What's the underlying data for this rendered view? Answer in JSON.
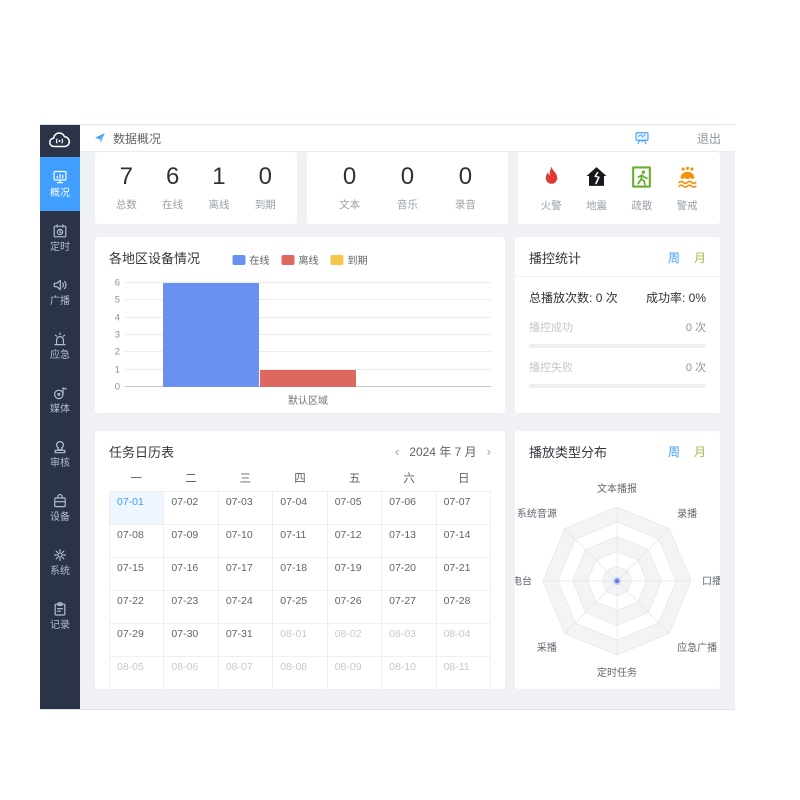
{
  "header": {
    "breadcrumb": "数据概况",
    "send_icon": "send-icon",
    "screen_icon": "screen-icon",
    "logout": "退出"
  },
  "sidebar": {
    "logo_icon": "broadcast-cloud-logo-icon",
    "items": [
      {
        "key": "overview",
        "label": "概况",
        "icon": "overview-icon",
        "active": true
      },
      {
        "key": "timer",
        "label": "定时",
        "icon": "timer-icon",
        "active": false
      },
      {
        "key": "broadcast",
        "label": "广播",
        "icon": "broadcast-icon",
        "active": false
      },
      {
        "key": "emergency",
        "label": "应急",
        "icon": "emergency-icon",
        "active": false
      },
      {
        "key": "media",
        "label": "媒体",
        "icon": "media-icon",
        "active": false
      },
      {
        "key": "audit",
        "label": "审核",
        "icon": "audit-icon",
        "active": false
      },
      {
        "key": "device",
        "label": "设备",
        "icon": "device-icon",
        "active": false
      },
      {
        "key": "system",
        "label": "系统",
        "icon": "system-icon",
        "active": false
      },
      {
        "key": "record",
        "label": "记录",
        "icon": "record-icon",
        "active": false
      }
    ]
  },
  "stats": {
    "devices": [
      {
        "value": "7",
        "label": "总数"
      },
      {
        "value": "6",
        "label": "在线"
      },
      {
        "value": "1",
        "label": "离线"
      },
      {
        "value": "0",
        "label": "到期"
      }
    ],
    "media": [
      {
        "value": "0",
        "label": "文本"
      },
      {
        "value": "0",
        "label": "音乐"
      },
      {
        "value": "0",
        "label": "录音"
      }
    ],
    "alerts": [
      {
        "label": "火警",
        "icon": "fire-icon",
        "color": "#E23A30"
      },
      {
        "label": "地震",
        "icon": "earthquake-icon",
        "color": "#17191D"
      },
      {
        "label": "疏散",
        "icon": "evacuation-icon",
        "color": "#67AE2E"
      },
      {
        "label": "警戒",
        "icon": "flood-icon",
        "color": "#F2930D"
      }
    ]
  },
  "region_panel": {
    "title": "各地区设备情况"
  },
  "playback": {
    "title": "播控统计",
    "tabs": {
      "week": "周",
      "month": "月"
    },
    "total_label": "总播放次数:",
    "total_value": "0 次",
    "rate_label": "成功率:",
    "rate_value": "0%",
    "meters": [
      {
        "label": "播控成功",
        "value": "0 次",
        "percent": 0
      },
      {
        "label": "播控失败",
        "value": "0 次",
        "percent": 0
      }
    ]
  },
  "calendar": {
    "title": "任务日历表",
    "prev": "‹",
    "next": "›",
    "month_label": "2024 年 7 月",
    "weekdays": [
      "一",
      "二",
      "三",
      "四",
      "五",
      "六",
      "日"
    ],
    "cells": [
      {
        "date": "07-01",
        "selected": true
      },
      {
        "date": "07-02"
      },
      {
        "date": "07-03"
      },
      {
        "date": "07-04"
      },
      {
        "date": "07-05"
      },
      {
        "date": "07-06"
      },
      {
        "date": "07-07"
      },
      {
        "date": "07-08"
      },
      {
        "date": "07-09"
      },
      {
        "date": "07-10"
      },
      {
        "date": "07-11"
      },
      {
        "date": "07-12"
      },
      {
        "date": "07-13"
      },
      {
        "date": "07-14"
      },
      {
        "date": "07-15"
      },
      {
        "date": "07-16"
      },
      {
        "date": "07-17"
      },
      {
        "date": "07-18"
      },
      {
        "date": "07-19"
      },
      {
        "date": "07-20"
      },
      {
        "date": "07-21"
      },
      {
        "date": "07-22"
      },
      {
        "date": "07-23"
      },
      {
        "date": "07-24"
      },
      {
        "date": "07-25"
      },
      {
        "date": "07-26"
      },
      {
        "date": "07-27"
      },
      {
        "date": "07-28"
      },
      {
        "date": "07-29"
      },
      {
        "date": "07-30"
      },
      {
        "date": "07-31"
      },
      {
        "date": "08-01",
        "muted": true
      },
      {
        "date": "08-02",
        "muted": true
      },
      {
        "date": "08-03",
        "muted": true
      },
      {
        "date": "08-04",
        "muted": true
      },
      {
        "date": "08-05",
        "muted": true
      },
      {
        "date": "08-06",
        "muted": true
      },
      {
        "date": "08-07",
        "muted": true
      },
      {
        "date": "08-08",
        "muted": true
      },
      {
        "date": "08-09",
        "muted": true
      },
      {
        "date": "08-10",
        "muted": true
      },
      {
        "date": "08-11",
        "muted": true
      }
    ]
  },
  "radar_panel": {
    "title": "播放类型分布",
    "tabs": {
      "week": "周",
      "month": "月"
    }
  },
  "colors": {
    "accent": "#409EFF",
    "month_tab": "#9DC050",
    "online": "#6991F1",
    "offline": "#DD6860",
    "expired": "#F3C84A"
  },
  "chart_data": [
    {
      "type": "bar",
      "title": "各地区设备情况",
      "categories": [
        "默认区域"
      ],
      "series": [
        {
          "name": "在线",
          "values": [
            6
          ],
          "color": "#6991F1"
        },
        {
          "name": "离线",
          "values": [
            1
          ],
          "color": "#DD6860"
        },
        {
          "name": "到期",
          "values": [
            0
          ],
          "color": "#F3C84A"
        }
      ],
      "xlabel": "",
      "ylabel": "",
      "ylim": [
        0,
        6
      ],
      "y_ticks": [
        0,
        1,
        2,
        3,
        4,
        5,
        6
      ],
      "grid": true,
      "legend_position": "top-center"
    },
    {
      "type": "radar",
      "title": "播放类型分布",
      "axes": [
        "文本播报",
        "录播",
        "口播",
        "应急广播",
        "定时任务",
        "采播",
        "FM电台",
        "系统音源"
      ],
      "series": [
        {
          "name": "播放类型",
          "values": [
            0,
            0,
            0,
            0,
            0,
            0,
            0,
            0
          ]
        }
      ],
      "rings": 5,
      "max": 5,
      "point_color": "#6577E8"
    }
  ]
}
